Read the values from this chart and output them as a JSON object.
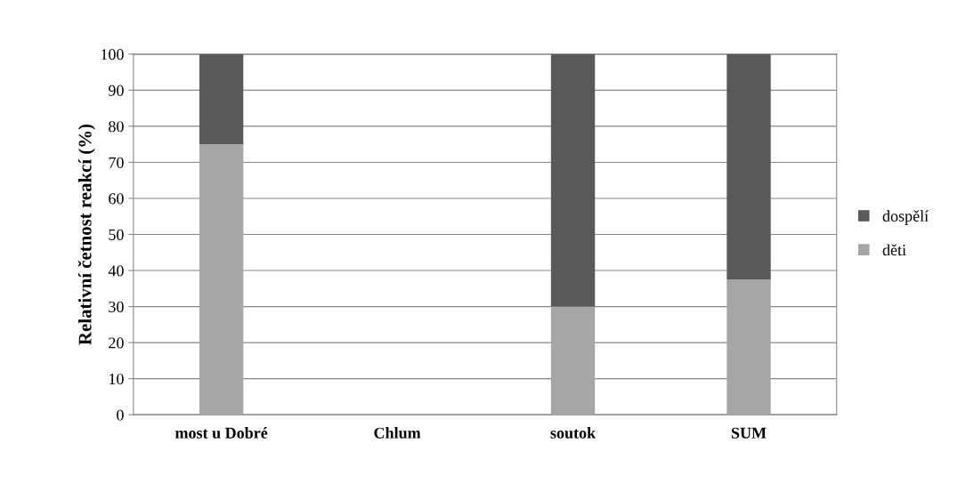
{
  "chart_data": {
    "type": "bar",
    "stacked": true,
    "ylabel": "Relativní četnost reakcí (%)",
    "categories": [
      "most u Dobré",
      "Chlum",
      "soutok",
      "SUM"
    ],
    "series": [
      {
        "name": "děti",
        "color": "#a6a6a6",
        "values": [
          75,
          null,
          30,
          37.5
        ]
      },
      {
        "name": "dospělí",
        "color": "#595959",
        "values": [
          25,
          null,
          70,
          62.5
        ]
      }
    ],
    "ylim": [
      0,
      100
    ],
    "yticks": [
      0,
      10,
      20,
      30,
      40,
      50,
      60,
      70,
      80,
      90,
      100
    ],
    "grid": "y",
    "legend": "right"
  }
}
